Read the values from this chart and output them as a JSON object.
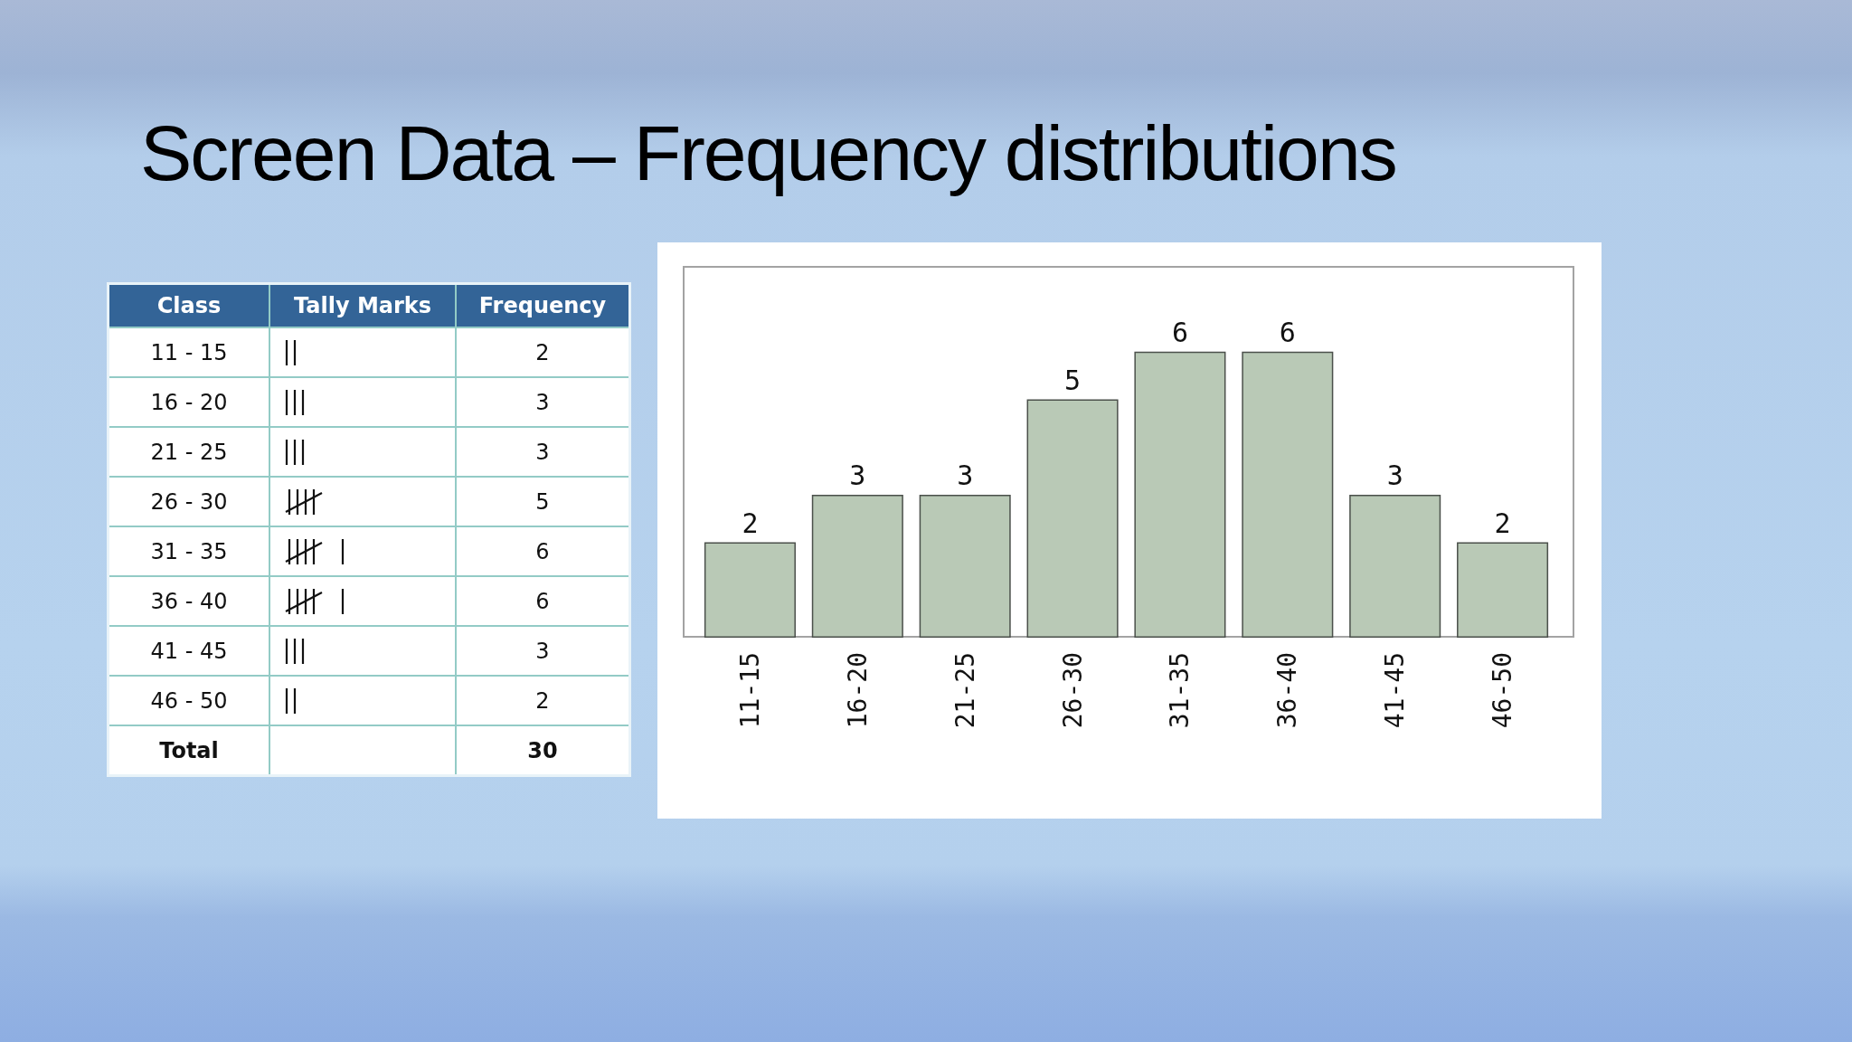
{
  "chart_data": [
    {
      "type": "other",
      "title": "Screen Data – Frequency distributions",
      "categories": [
        "11 - 15",
        "16 - 20",
        "21 - 25",
        "26 - 30",
        "31 - 35",
        "36 - 40",
        "41 - 45",
        "46 - 50"
      ],
      "values": [
        2,
        3,
        3,
        5,
        6,
        6,
        3,
        2
      ],
      "data_labels": true,
      "annotations": [
        "Class",
        "Tally Marks",
        "Frequency",
        "Total",
        "30"
      ]
    },
    {
      "type": "bar",
      "categories": [
        "11-15",
        "16-20",
        "21-25",
        "26-30",
        "31-35",
        "36-40",
        "41-45",
        "46-50"
      ],
      "values": [
        2,
        3,
        3,
        5,
        6,
        6,
        3,
        2
      ],
      "color": "#b9c9b6",
      "data_labels": true,
      "tick_labels": "x"
    }
  ]
}
